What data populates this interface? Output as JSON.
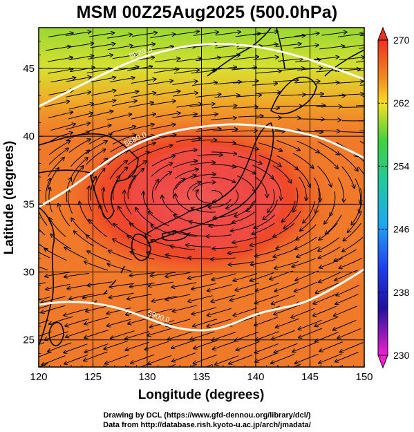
{
  "title": "MSM 00Z25Aug2025 (500.0hPa)",
  "x_axis": {
    "title": "Longitude (degrees)",
    "min": 120,
    "max": 150,
    "ticks": [
      "120",
      "125",
      "130",
      "135",
      "140",
      "145",
      "150"
    ]
  },
  "y_axis": {
    "title": "Latitude  (degrees)",
    "min": 23,
    "max": 48,
    "ticks": [
      "25",
      "30",
      "35",
      "40",
      "45"
    ]
  },
  "colorbar": {
    "min": 230,
    "max": 270,
    "labels": [
      "270",
      "262",
      "254",
      "246",
      "238",
      "230"
    ]
  },
  "contours": [
    {
      "label": "5820.0",
      "points": [
        [
          120,
          42.2
        ],
        [
          123,
          43.4
        ],
        [
          126,
          44.6
        ],
        [
          129,
          45.7
        ],
        [
          132,
          46.4
        ],
        [
          135,
          46.8
        ],
        [
          138,
          46.8
        ],
        [
          141,
          46.5
        ],
        [
          144,
          45.9
        ],
        [
          147,
          45.1
        ],
        [
          150,
          44.2
        ]
      ]
    },
    {
      "label": "5880.0",
      "points": [
        [
          120,
          34.8
        ],
        [
          122,
          35.7
        ],
        [
          124,
          36.8
        ],
        [
          126,
          38.0
        ],
        [
          128,
          39.0
        ],
        [
          130,
          39.8
        ],
        [
          132,
          40.3
        ],
        [
          134,
          40.6
        ],
        [
          136,
          40.8
        ],
        [
          138,
          40.9
        ],
        [
          140,
          40.8
        ],
        [
          142,
          40.6
        ],
        [
          144,
          40.3
        ],
        [
          146,
          39.9
        ],
        [
          148,
          39.2
        ],
        [
          150,
          38.4
        ]
      ]
    },
    {
      "label": "5900.0",
      "points": [
        [
          120,
          27.6
        ],
        [
          122,
          27.8
        ],
        [
          124,
          27.8
        ],
        [
          126,
          27.6
        ],
        [
          128,
          27.2
        ],
        [
          130,
          26.6
        ],
        [
          132,
          26.0
        ],
        [
          134,
          25.7
        ],
        [
          136,
          25.7
        ],
        [
          138,
          26.2
        ],
        [
          140,
          26.9
        ],
        [
          142,
          27.3
        ],
        [
          144,
          27.6
        ],
        [
          146,
          28.3
        ],
        [
          148,
          29.2
        ],
        [
          150,
          30.2
        ]
      ]
    }
  ],
  "credits": {
    "line1": "Drawing by DCL (https://www.gfd-dennou.org/library/dcl/)",
    "line2": "Data from http://database.rish.kyoto-u.ac.jp/arch/jmadata/"
  },
  "colors": {
    "field_low": "#2020ff",
    "field_high": "#ff3030",
    "contour": "#ffffff",
    "streamline": "#000000"
  }
}
